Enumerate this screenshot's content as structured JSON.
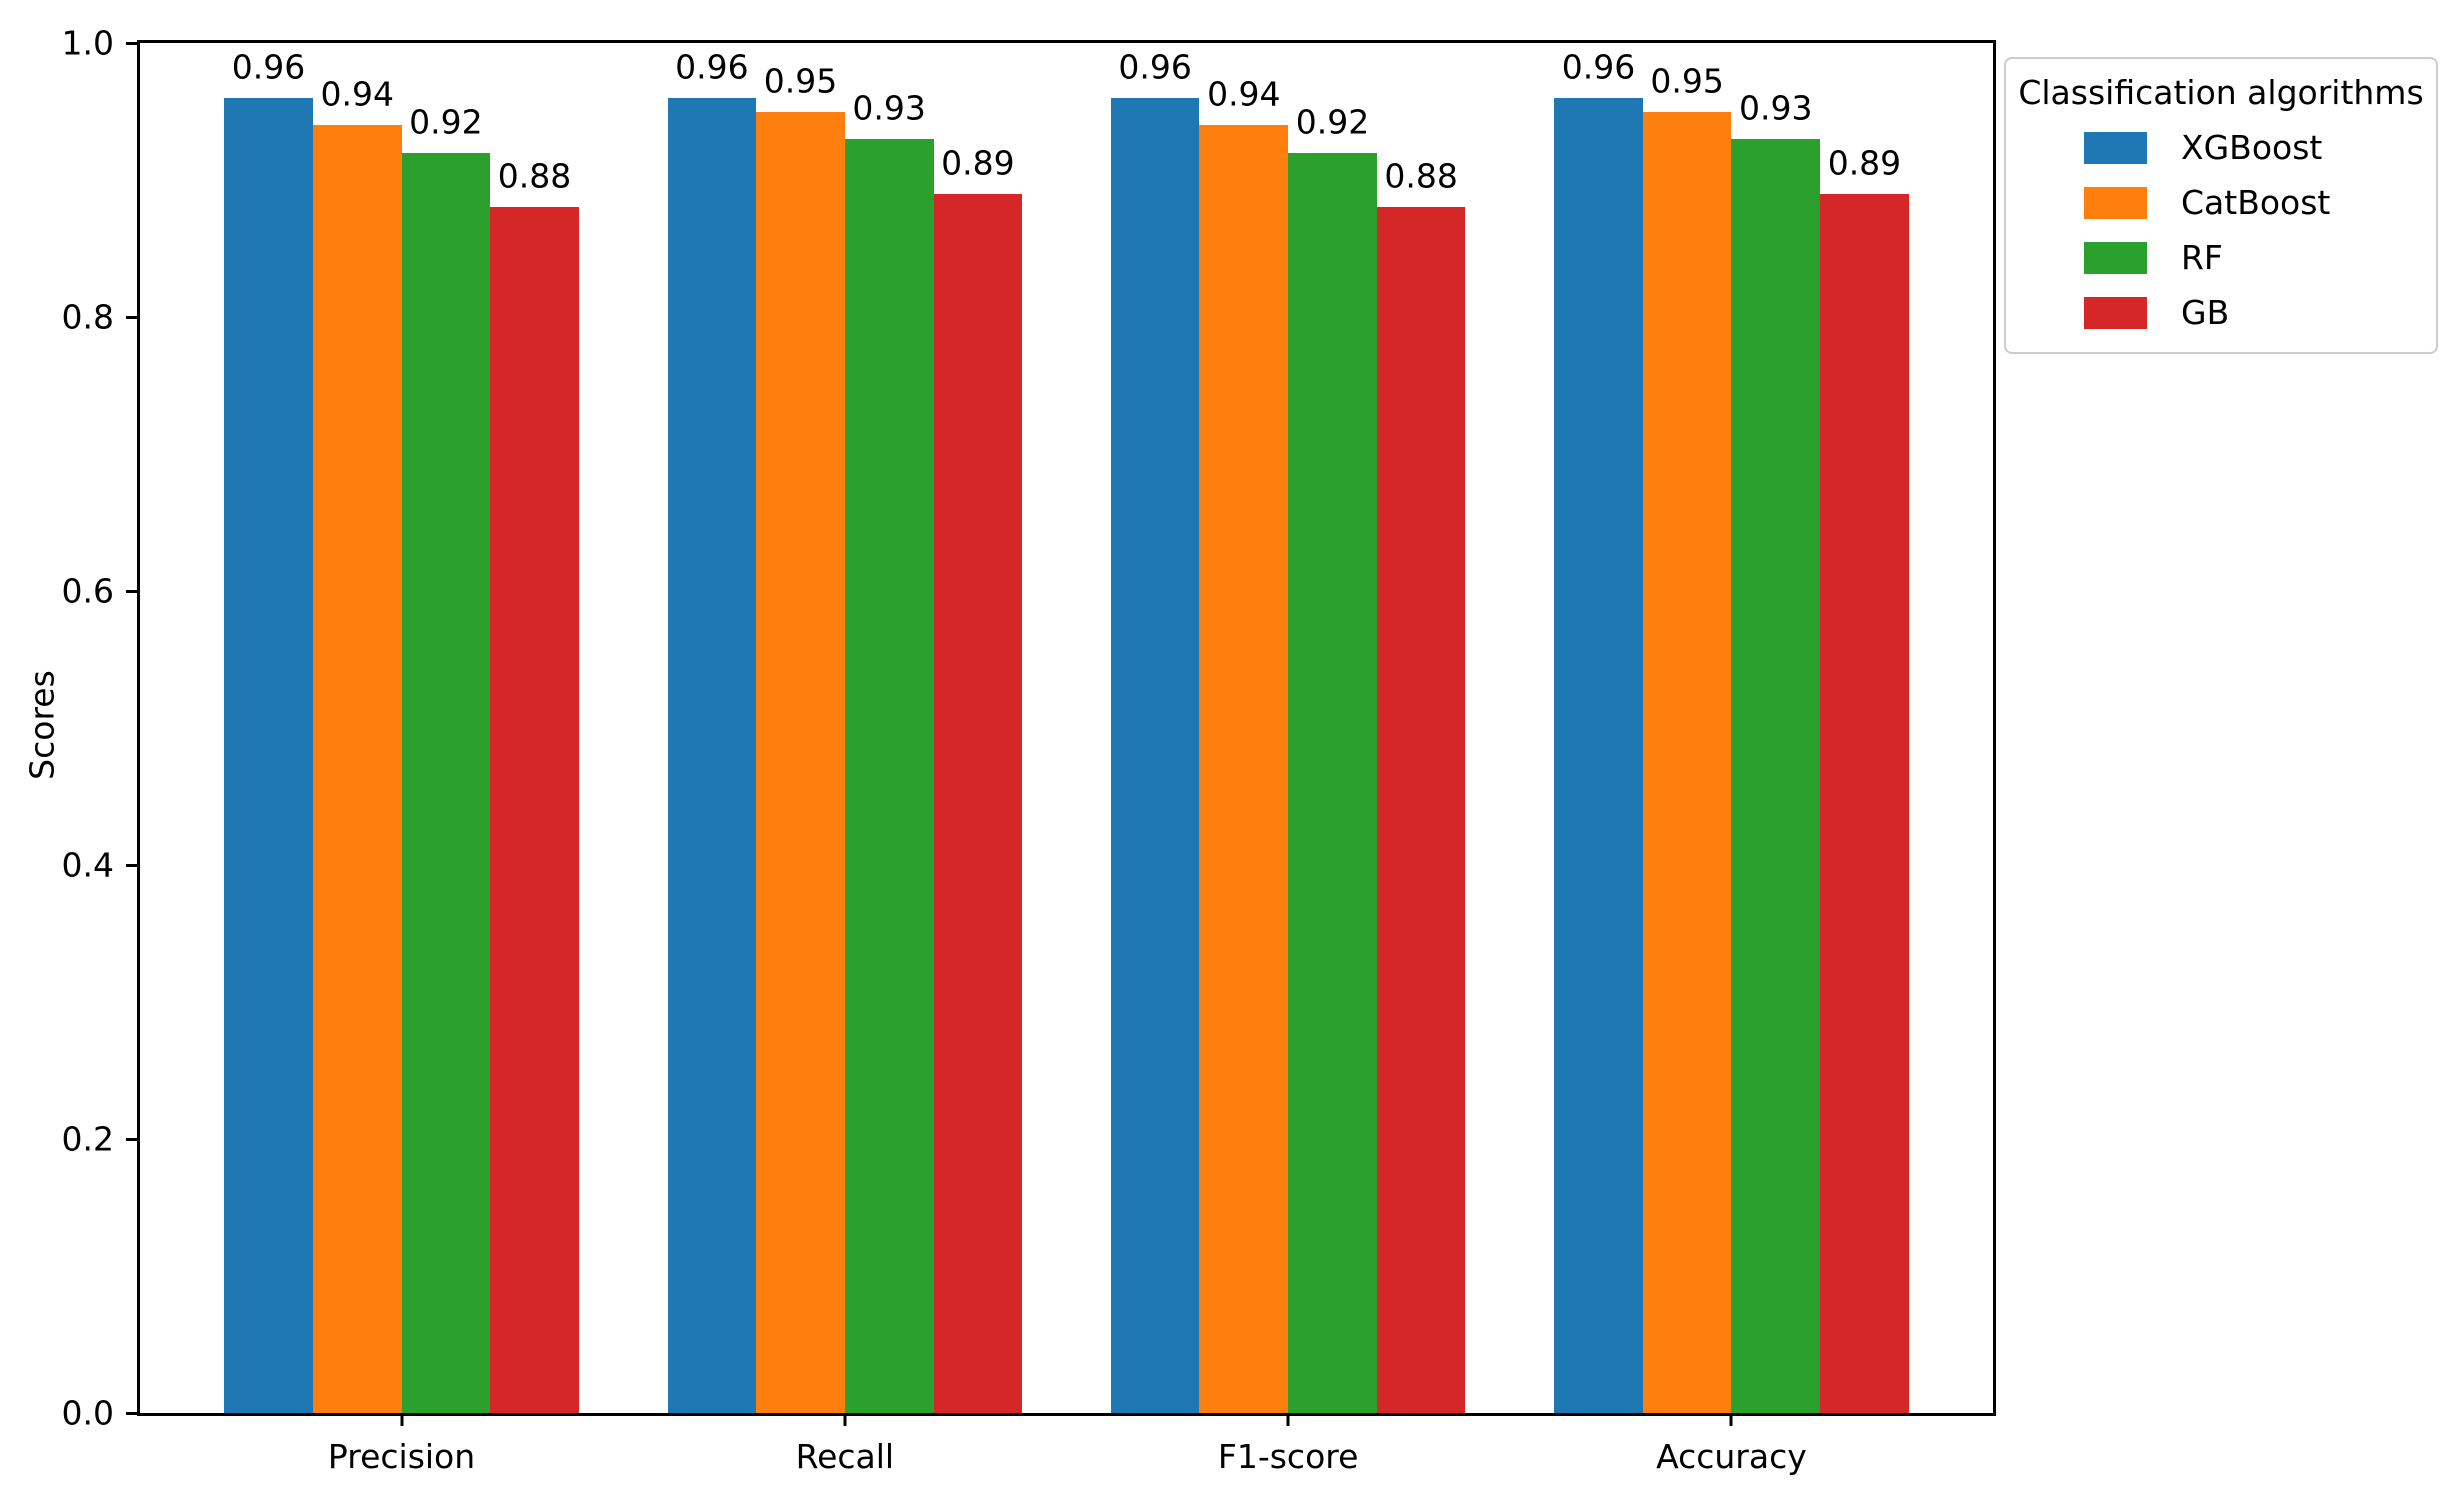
{
  "chart_data": {
    "type": "bar",
    "title": "",
    "categories": [
      "Precision",
      "Recall",
      "F1-score",
      "Accuracy"
    ],
    "series": [
      {
        "name": "XGBoost",
        "color": "#1f77b4",
        "values": [
          0.96,
          0.96,
          0.96,
          0.96
        ]
      },
      {
        "name": "CatBoost",
        "color": "#ff7f0e",
        "values": [
          0.94,
          0.95,
          0.94,
          0.95
        ]
      },
      {
        "name": "RF",
        "color": "#2ca02c",
        "values": [
          0.92,
          0.93,
          0.92,
          0.93
        ]
      },
      {
        "name": "GB",
        "color": "#d62728",
        "values": [
          0.88,
          0.89,
          0.88,
          0.89
        ]
      }
    ],
    "bar_value_labels": true,
    "value_label_decimals": 2,
    "xlabel": "",
    "ylabel": "Scores",
    "ylim": [
      0.0,
      1.0
    ],
    "yticks": [
      "0.0",
      "0.2",
      "0.4",
      "0.6",
      "0.8",
      "1.0"
    ],
    "grid": false,
    "legend": {
      "title": "Classification algorithms",
      "position": "upper-right-outside"
    }
  }
}
